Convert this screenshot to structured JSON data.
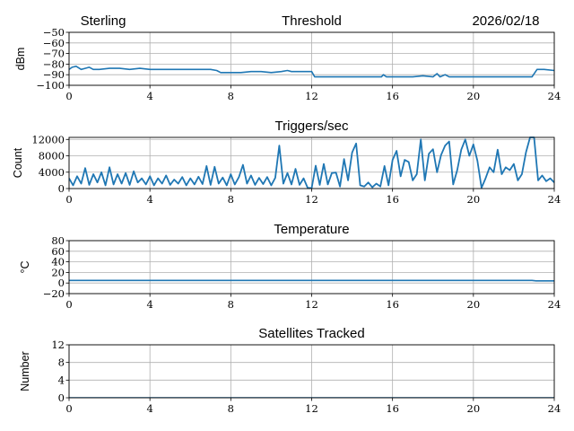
{
  "header": {
    "station": "Sterling",
    "date": "2026/02/18"
  },
  "chart_data": [
    {
      "type": "line",
      "title": "Threshold",
      "xlabel": "",
      "ylabel": "dBm",
      "xlim": [
        0,
        24
      ],
      "ylim": [
        -100,
        -50
      ],
      "xticks": [
        "0",
        "4",
        "8",
        "12",
        "16",
        "20",
        "24"
      ],
      "yticks": [
        "−100",
        "−90",
        "−80",
        "−70",
        "−60",
        "−50"
      ],
      "ytick_values": [
        -100,
        -90,
        -80,
        -70,
        -60,
        -50
      ],
      "grid": true,
      "color": "#1f77b4",
      "points": [
        [
          0,
          -85
        ],
        [
          0.15,
          -83
        ],
        [
          0.35,
          -82
        ],
        [
          0.6,
          -85
        ],
        [
          0.8,
          -84
        ],
        [
          1,
          -83
        ],
        [
          1.2,
          -85
        ],
        [
          1.5,
          -85
        ],
        [
          2,
          -84
        ],
        [
          2.5,
          -84
        ],
        [
          3,
          -85
        ],
        [
          3.5,
          -84
        ],
        [
          4,
          -85
        ],
        [
          4.5,
          -85
        ],
        [
          5,
          -85
        ],
        [
          5.5,
          -85
        ],
        [
          6,
          -85
        ],
        [
          6.5,
          -85
        ],
        [
          7,
          -85
        ],
        [
          7.3,
          -86
        ],
        [
          7.5,
          -88
        ],
        [
          8,
          -88
        ],
        [
          8.5,
          -88
        ],
        [
          9,
          -87
        ],
        [
          9.5,
          -87
        ],
        [
          10,
          -88
        ],
        [
          10.5,
          -87
        ],
        [
          10.8,
          -86
        ],
        [
          11,
          -87
        ],
        [
          11.5,
          -87
        ],
        [
          12,
          -87
        ],
        [
          12.15,
          -92
        ],
        [
          13,
          -92
        ],
        [
          14,
          -92
        ],
        [
          15,
          -92
        ],
        [
          15.45,
          -92
        ],
        [
          15.55,
          -90
        ],
        [
          15.7,
          -92
        ],
        [
          16,
          -92
        ],
        [
          17,
          -92
        ],
        [
          17.5,
          -91
        ],
        [
          18,
          -92
        ],
        [
          18.2,
          -89
        ],
        [
          18.35,
          -92
        ],
        [
          18.6,
          -90
        ],
        [
          18.8,
          -92
        ],
        [
          19.5,
          -92
        ],
        [
          20,
          -92
        ],
        [
          21,
          -92
        ],
        [
          22,
          -92
        ],
        [
          22.9,
          -92
        ],
        [
          23.15,
          -85
        ],
        [
          23.5,
          -85
        ],
        [
          24,
          -86
        ]
      ]
    },
    {
      "type": "line",
      "title": "Triggers/sec",
      "xlabel": "",
      "ylabel": "Count",
      "xlim": [
        0,
        24
      ],
      "ylim": [
        0,
        12500
      ],
      "xticks": [
        "0",
        "4",
        "8",
        "12",
        "16",
        "20",
        "24"
      ],
      "yticks": [
        "0",
        "4000",
        "8000",
        "12000"
      ],
      "ytick_values": [
        0,
        4000,
        8000,
        12000
      ],
      "grid": true,
      "color": "#1f77b4",
      "x_step_hours": 0.2,
      "values": [
        2500,
        800,
        3000,
        1200,
        5000,
        900,
        3500,
        1500,
        4000,
        800,
        5200,
        1000,
        3500,
        1200,
        3800,
        900,
        4200,
        1500,
        2500,
        1000,
        3000,
        800,
        2500,
        1200,
        3200,
        900,
        2200,
        1200,
        2800,
        800,
        2500,
        1000,
        2900,
        1100,
        5500,
        900,
        5300,
        1200,
        2700,
        800,
        3500,
        1000,
        2800,
        5800,
        1200,
        3200,
        900,
        2600,
        1100,
        2800,
        800,
        2600,
        10500,
        1200,
        3800,
        1000,
        4800,
        900,
        2500,
        200,
        100,
        5600,
        900,
        6000,
        1000,
        3800,
        3900,
        500,
        7200,
        2000,
        8800,
        11000,
        800,
        500,
        1500,
        300,
        1200,
        500,
        5500,
        800,
        7000,
        9200,
        3000,
        7000,
        6500,
        2000,
        3500,
        12000,
        2000,
        8500,
        9600,
        4000,
        8200,
        10500,
        11500,
        1000,
        4500,
        9500,
        12000,
        8000,
        10800,
        6800,
        200,
        2500,
        5200,
        4000,
        9500,
        3500,
        5200,
        4500,
        6000,
        2000,
        3500,
        8800,
        12500,
        12500,
        2000,
        3200,
        1800,
        2500,
        1500
      ]
    },
    {
      "type": "line",
      "title": "Temperature",
      "xlabel": "",
      "ylabel": "°C",
      "xlim": [
        0,
        24
      ],
      "ylim": [
        -20,
        80
      ],
      "xticks": [
        "0",
        "4",
        "8",
        "12",
        "16",
        "20",
        "24"
      ],
      "yticks": [
        "−20",
        "0",
        "20",
        "40",
        "60",
        "80"
      ],
      "ytick_values": [
        -20,
        0,
        20,
        40,
        60,
        80
      ],
      "grid": true,
      "color": "#1f77b4",
      "points": [
        [
          0,
          5
        ],
        [
          22.9,
          5
        ],
        [
          23.1,
          4
        ],
        [
          24,
          4
        ]
      ]
    },
    {
      "type": "line",
      "title": "Satellites Tracked",
      "xlabel": "",
      "ylabel": "Number",
      "xlim": [
        0,
        24
      ],
      "ylim": [
        0,
        12
      ],
      "xticks": [
        "0",
        "4",
        "8",
        "12",
        "16",
        "20",
        "24"
      ],
      "yticks": [
        "0",
        "4",
        "8",
        "12"
      ],
      "ytick_values": [
        0,
        4,
        8,
        12
      ],
      "grid": true,
      "color": "#1f77b4",
      "points": [
        [
          0,
          0
        ],
        [
          24,
          0
        ]
      ]
    }
  ]
}
